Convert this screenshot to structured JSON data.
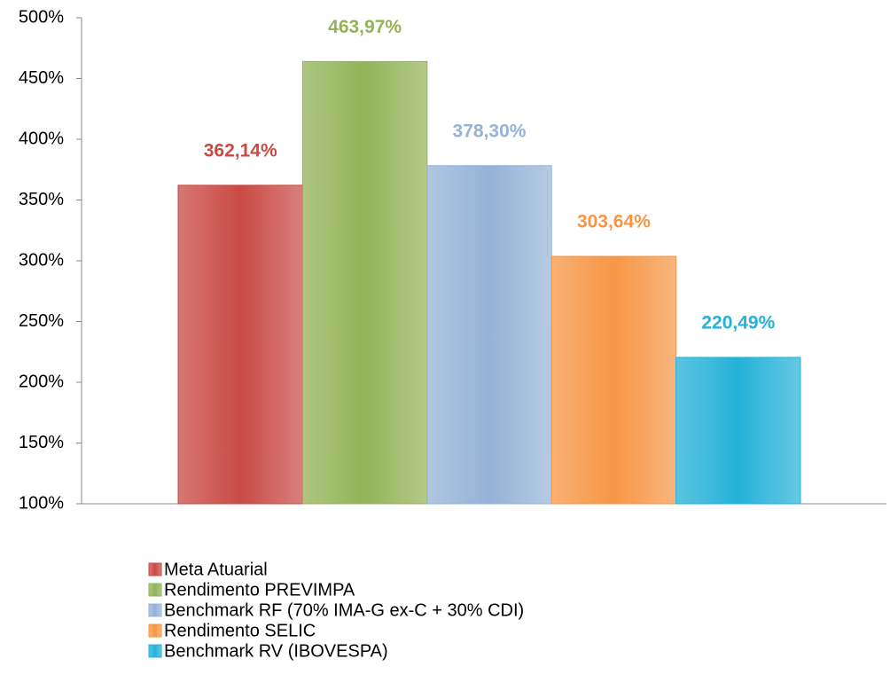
{
  "chart_data": {
    "type": "bar",
    "categories": [
      null
    ],
    "series": [
      {
        "name": "Meta Atuarial",
        "color": "#c94a45",
        "values": [
          362.14
        ],
        "value_labels": [
          "362,14%"
        ]
      },
      {
        "name": "Rendimento PREVIMPA",
        "color": "#93b357",
        "values": [
          463.97
        ],
        "value_labels": [
          "463,97%"
        ]
      },
      {
        "name": "Benchmark RF (70% IMA-G ex-C + 30% CDI)",
        "color": "#95b3d7",
        "values": [
          378.3
        ],
        "value_labels": [
          "378,30%"
        ]
      },
      {
        "name": "Rendimento SELIC",
        "color": "#f79646",
        "values": [
          303.64
        ],
        "value_labels": [
          "303,64%"
        ]
      },
      {
        "name": "Benchmark RV (IBOVESPA)",
        "color": "#25b1d8",
        "values": [
          220.49
        ],
        "value_labels": [
          "220,49%"
        ]
      }
    ],
    "ylim": [
      100,
      500
    ],
    "yticks": [
      {
        "value": 100,
        "label": "100%"
      },
      {
        "value": 150,
        "label": "150%"
      },
      {
        "value": 200,
        "label": "200%"
      },
      {
        "value": 250,
        "label": "250%"
      },
      {
        "value": 300,
        "label": "300%"
      },
      {
        "value": 350,
        "label": "350%"
      },
      {
        "value": 400,
        "label": "400%"
      },
      {
        "value": 450,
        "label": "450%"
      },
      {
        "value": 500,
        "label": "500%"
      }
    ],
    "grid": false,
    "legend": "bottom"
  }
}
